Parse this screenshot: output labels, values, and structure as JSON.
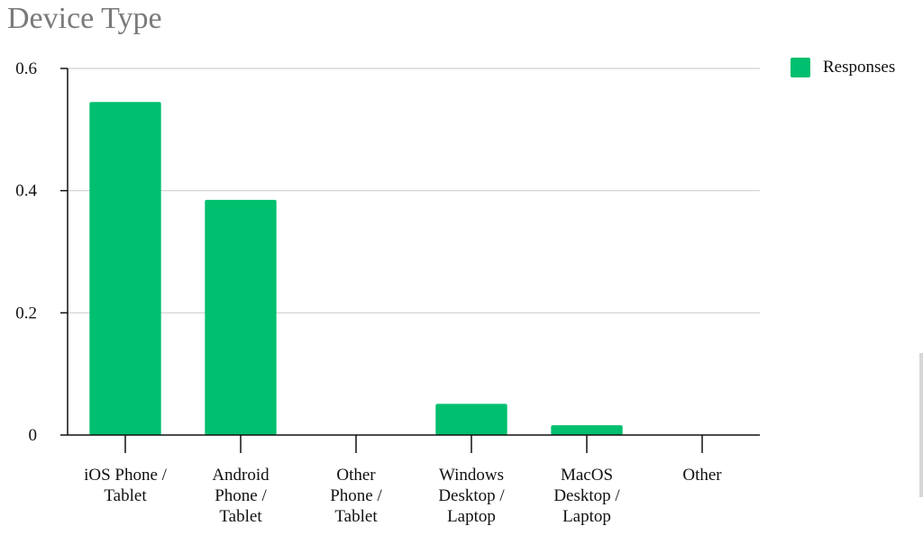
{
  "chart_data": {
    "type": "bar",
    "title": "Device Type",
    "categories": [
      [
        "iOS Phone /",
        "Tablet"
      ],
      [
        "Android",
        "Phone /",
        "Tablet"
      ],
      [
        "Other",
        "Phone /",
        "Tablet"
      ],
      [
        "Windows",
        "Desktop /",
        "Laptop"
      ],
      [
        "MacOS",
        "Desktop /",
        "Laptop"
      ],
      [
        "Other"
      ]
    ],
    "series": [
      {
        "name": "Responses",
        "color": "#00bf6f",
        "values": [
          0.545,
          0.385,
          0,
          0.051,
          0.016,
          0
        ]
      }
    ],
    "ylim": [
      0,
      0.6
    ],
    "yticks": [
      0,
      0.2,
      0.4,
      0.6
    ],
    "ytick_labels": [
      "0",
      "0.2",
      "0.4",
      "0.6"
    ],
    "xlabel": "",
    "ylabel": "",
    "grid": true,
    "legend_position": "top-right"
  }
}
